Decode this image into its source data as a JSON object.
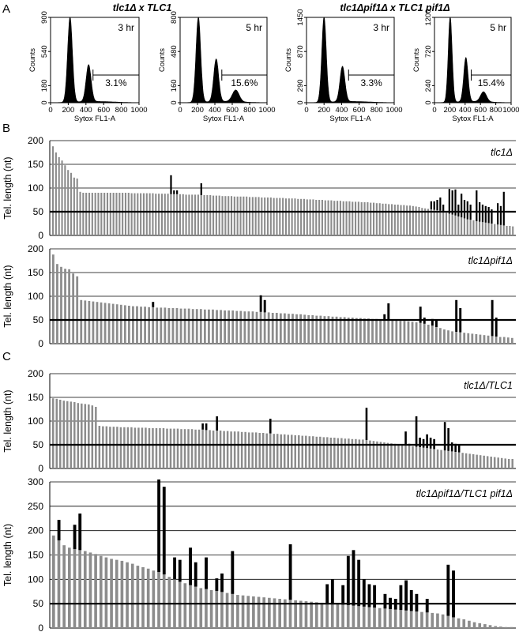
{
  "panel_labels": [
    "A",
    "B",
    "C"
  ],
  "histogram_groups": [
    {
      "title": "tlc1Δ x TLC1"
    },
    {
      "title": "tlc1Δpif1Δ x TLC1 pif1Δ"
    }
  ],
  "colors": {
    "bar_gray": "#8c8c8c",
    "bar_black": "#000000",
    "line": "#000000",
    "grid": "#000000"
  },
  "chart_data": [
    {
      "type": "area",
      "time": "3 hr",
      "percent": "3.1%",
      "ylabel": "Counts",
      "xlabel": "Sytox FL1-A",
      "yticks": [
        "0",
        "180",
        "540",
        "900"
      ],
      "ylim": [
        0,
        900
      ],
      "xticks": [
        "0",
        "200",
        "400",
        "600",
        "800",
        "1000"
      ],
      "xlim": [
        0,
        1000
      ],
      "peaks": [
        {
          "x": 220,
          "y": 900,
          "w": 38
        },
        {
          "x": 430,
          "y": 390,
          "w": 40
        }
      ],
      "gate": [
        480,
        1000
      ]
    },
    {
      "type": "area",
      "time": "5 hr",
      "percent": "15.6%",
      "ylabel": "Counts",
      "xlabel": "Sytox FL1-A",
      "yticks": [
        "0",
        "160",
        "480",
        "800"
      ],
      "ylim": [
        0,
        800
      ],
      "xticks": [
        "0",
        "200",
        "400",
        "600",
        "800",
        "1000"
      ],
      "xlim": [
        0,
        1000
      ],
      "peaks": [
        {
          "x": 210,
          "y": 800,
          "w": 38
        },
        {
          "x": 415,
          "y": 400,
          "w": 40
        },
        {
          "x": 640,
          "y": 110,
          "w": 55
        }
      ],
      "gate": [
        480,
        1000
      ]
    },
    {
      "type": "area",
      "time": "3 hr",
      "percent": "3.3%",
      "ylabel": "Counts",
      "xlabel": "Sytox FL1-A",
      "yticks": [
        "0",
        "290",
        "870",
        "1450"
      ],
      "ylim": [
        0,
        1450
      ],
      "xticks": [
        "0",
        "200",
        "400",
        "600",
        "800",
        "1000"
      ],
      "xlim": [
        0,
        1000
      ],
      "peaks": [
        {
          "x": 200,
          "y": 1450,
          "w": 36
        },
        {
          "x": 410,
          "y": 600,
          "w": 40
        }
      ],
      "gate": [
        480,
        1000
      ]
    },
    {
      "type": "area",
      "time": "5 hr",
      "percent": "15.4%",
      "ylabel": "Counts",
      "xlabel": "Sytox FL1-A",
      "yticks": [
        "0",
        "240",
        "720",
        "1200"
      ],
      "ylim": [
        0,
        1200
      ],
      "xticks": [
        "0",
        "200",
        "400",
        "600",
        "800",
        "1000"
      ],
      "xlim": [
        0,
        1000
      ],
      "peaks": [
        {
          "x": 205,
          "y": 1200,
          "w": 36
        },
        {
          "x": 410,
          "y": 620,
          "w": 40
        },
        {
          "x": 640,
          "y": 140,
          "w": 55
        }
      ],
      "gate": [
        480,
        1000
      ]
    },
    {
      "type": "bar",
      "label": "tlc1Δ",
      "ylabel": "Tel. length (nt)",
      "ylim": [
        0,
        200
      ],
      "yticks": [
        "0",
        "50",
        "100",
        "150",
        "200"
      ],
      "reference_line": 50,
      "values": [
        188,
        175,
        165,
        158,
        148,
        138,
        132,
        122,
        120,
        92,
        90,
        90,
        90,
        90,
        90,
        90,
        90,
        90,
        90,
        90,
        90,
        90,
        90,
        90,
        90,
        90,
        89,
        89,
        89,
        89,
        89,
        89,
        89,
        89,
        88,
        88,
        88,
        88,
        88,
        87,
        87,
        87,
        87,
        87,
        86,
        86,
        86,
        86,
        86,
        85,
        85,
        85,
        85,
        84,
        84,
        84,
        83,
        83,
        83,
        83,
        82,
        82,
        82,
        82,
        82,
        81,
        81,
        81,
        81,
        80,
        80,
        80,
        80,
        79,
        79,
        79,
        79,
        78,
        78,
        78,
        78,
        77,
        77,
        77,
        76,
        76,
        76,
        75,
        75,
        75,
        74,
        74,
        74,
        73,
        73,
        73,
        72,
        72,
        72,
        71,
        71,
        71,
        70,
        70,
        70,
        69,
        69,
        68,
        68,
        67,
        67,
        66,
        66,
        65,
        65,
        64,
        64,
        63,
        63,
        62,
        61,
        60,
        58,
        57,
        56,
        55,
        54,
        53,
        52,
        50,
        48,
        46,
        44,
        42,
        40,
        38,
        36,
        34,
        33,
        32,
        30,
        29,
        28,
        27,
        26,
        25,
        24,
        23,
        22,
        21,
        20,
        20,
        19
      ],
      "extensions": [
        {
          "i": 39,
          "v": 127
        },
        {
          "i": 40,
          "v": 95
        },
        {
          "i": 41,
          "v": 95
        },
        {
          "i": 49,
          "v": 110
        },
        {
          "i": 125,
          "v": 72
        },
        {
          "i": 126,
          "v": 72
        },
        {
          "i": 127,
          "v": 75
        },
        {
          "i": 128,
          "v": 80
        },
        {
          "i": 129,
          "v": 65
        },
        {
          "i": 131,
          "v": 98
        },
        {
          "i": 132,
          "v": 95
        },
        {
          "i": 133,
          "v": 97
        },
        {
          "i": 134,
          "v": 65
        },
        {
          "i": 135,
          "v": 88
        },
        {
          "i": 136,
          "v": 75
        },
        {
          "i": 137,
          "v": 72
        },
        {
          "i": 138,
          "v": 65
        },
        {
          "i": 140,
          "v": 95
        },
        {
          "i": 141,
          "v": 70
        },
        {
          "i": 142,
          "v": 65
        },
        {
          "i": 143,
          "v": 62
        },
        {
          "i": 144,
          "v": 60
        },
        {
          "i": 145,
          "v": 55
        },
        {
          "i": 147,
          "v": 68
        },
        {
          "i": 148,
          "v": 62
        },
        {
          "i": 149,
          "v": 92
        }
      ]
    },
    {
      "type": "bar",
      "label": "tlc1Δpif1Δ",
      "ylabel": "Tel. length (nt)",
      "ylim": [
        0,
        200
      ],
      "yticks": [
        "0",
        "50",
        "100",
        "150",
        "200"
      ],
      "reference_line": 50,
      "values": [
        188,
        168,
        162,
        158,
        157,
        148,
        142,
        92,
        91,
        90,
        89,
        88,
        87,
        86,
        85,
        84,
        83,
        82,
        81,
        80,
        79,
        79,
        78,
        78,
        77,
        77,
        76,
        76,
        76,
        75,
        75,
        75,
        74,
        74,
        74,
        73,
        73,
        73,
        72,
        72,
        72,
        71,
        71,
        70,
        70,
        70,
        69,
        69,
        68,
        68,
        68,
        67,
        67,
        66,
        66,
        65,
        65,
        64,
        64,
        63,
        63,
        62,
        62,
        61,
        60,
        60,
        59,
        59,
        58,
        58,
        57,
        57,
        56,
        56,
        55,
        55,
        54,
        54,
        53,
        53,
        52,
        52,
        51,
        51,
        50,
        50,
        49,
        48,
        48,
        47,
        46,
        45,
        44,
        42,
        40,
        38,
        35,
        33,
        30,
        28,
        26,
        25,
        24,
        23,
        22,
        21,
        20,
        19,
        18,
        17,
        16,
        15,
        14,
        14,
        13,
        12
      ],
      "extensions": [
        {
          "i": 25,
          "v": 88
        },
        {
          "i": 52,
          "v": 102
        },
        {
          "i": 53,
          "v": 92
        },
        {
          "i": 83,
          "v": 62
        },
        {
          "i": 84,
          "v": 85
        },
        {
          "i": 92,
          "v": 78
        },
        {
          "i": 93,
          "v": 55
        },
        {
          "i": 95,
          "v": 52
        },
        {
          "i": 96,
          "v": 50
        },
        {
          "i": 101,
          "v": 92
        },
        {
          "i": 102,
          "v": 75
        },
        {
          "i": 110,
          "v": 92
        },
        {
          "i": 111,
          "v": 55
        }
      ]
    },
    {
      "type": "bar",
      "label": "tlc1Δ/TLC1",
      "ylabel": "Tel. length (nt)",
      "ylim": [
        0,
        200
      ],
      "yticks": [
        "0",
        "50",
        "100",
        "150",
        "200"
      ],
      "reference_line": 50,
      "values": [
        148,
        147,
        145,
        143,
        142,
        141,
        140,
        138,
        137,
        136,
        135,
        133,
        130,
        90,
        89,
        89,
        88,
        88,
        88,
        87,
        87,
        87,
        87,
        86,
        86,
        86,
        86,
        85,
        85,
        85,
        85,
        85,
        84,
        84,
        84,
        84,
        83,
        83,
        83,
        83,
        82,
        82,
        82,
        81,
        81,
        80,
        80,
        80,
        79,
        79,
        78,
        78,
        78,
        77,
        77,
        76,
        76,
        76,
        75,
        75,
        74,
        74,
        73,
        73,
        72,
        72,
        71,
        71,
        70,
        70,
        69,
        69,
        68,
        68,
        67,
        67,
        66,
        66,
        65,
        65,
        64,
        64,
        63,
        63,
        62,
        62,
        61,
        61,
        60,
        59,
        58,
        57,
        56,
        55,
        54,
        53,
        52,
        51,
        50,
        49,
        48,
        47,
        46,
        45,
        44,
        43,
        42,
        41,
        40,
        39,
        38,
        37,
        36,
        35,
        34,
        33,
        32,
        31,
        30,
        29,
        28,
        27,
        26,
        25,
        24,
        23,
        22,
        21,
        20,
        20
      ],
      "extensions": [
        {
          "i": 42,
          "v": 95
        },
        {
          "i": 43,
          "v": 95
        },
        {
          "i": 46,
          "v": 110
        },
        {
          "i": 61,
          "v": 105
        },
        {
          "i": 77,
          "v": 65
        },
        {
          "i": 88,
          "v": 128
        },
        {
          "i": 99,
          "v": 78
        },
        {
          "i": 100,
          "v": 52
        },
        {
          "i": 102,
          "v": 110
        },
        {
          "i": 103,
          "v": 65
        },
        {
          "i": 104,
          "v": 62
        },
        {
          "i": 105,
          "v": 72
        },
        {
          "i": 106,
          "v": 65
        },
        {
          "i": 107,
          "v": 62
        },
        {
          "i": 110,
          "v": 98
        },
        {
          "i": 111,
          "v": 85
        },
        {
          "i": 112,
          "v": 55
        },
        {
          "i": 113,
          "v": 52
        },
        {
          "i": 114,
          "v": 50
        }
      ]
    },
    {
      "type": "bar",
      "label": "tlc1Δpif1Δ/TLC1 pif1Δ",
      "ylabel": "Tel. length (nt)",
      "ylim": [
        0,
        300
      ],
      "yticks": [
        "0",
        "50",
        "100",
        "150",
        "200",
        "250",
        "300"
      ],
      "reference_line": 50,
      "values": [
        190,
        180,
        170,
        165,
        162,
        160,
        158,
        155,
        152,
        148,
        145,
        142,
        140,
        138,
        135,
        132,
        128,
        125,
        122,
        118,
        115,
        110,
        105,
        100,
        95,
        92,
        88,
        85,
        82,
        80,
        78,
        76,
        74,
        72,
        70,
        68,
        67,
        66,
        65,
        64,
        63,
        62,
        61,
        60,
        59,
        58,
        57,
        56,
        55,
        54,
        53,
        52,
        51,
        50,
        49,
        48,
        47,
        46,
        45,
        44,
        43,
        42,
        41,
        40,
        39,
        38,
        37,
        36,
        35,
        34,
        33,
        32,
        31,
        30,
        28,
        25,
        22,
        20,
        18,
        15,
        12,
        10,
        8,
        6,
        4,
        3,
        2,
        2
      ],
      "extensions": [
        {
          "i": 1,
          "v": 222
        },
        {
          "i": 4,
          "v": 212
        },
        {
          "i": 5,
          "v": 235
        },
        {
          "i": 20,
          "v": 305
        },
        {
          "i": 21,
          "v": 290
        },
        {
          "i": 23,
          "v": 145
        },
        {
          "i": 24,
          "v": 140
        },
        {
          "i": 26,
          "v": 165
        },
        {
          "i": 27,
          "v": 135
        },
        {
          "i": 29,
          "v": 145
        },
        {
          "i": 31,
          "v": 102
        },
        {
          "i": 32,
          "v": 112
        },
        {
          "i": 34,
          "v": 158
        },
        {
          "i": 45,
          "v": 172
        },
        {
          "i": 52,
          "v": 90
        },
        {
          "i": 53,
          "v": 100
        },
        {
          "i": 55,
          "v": 88
        },
        {
          "i": 56,
          "v": 148
        },
        {
          "i": 57,
          "v": 160
        },
        {
          "i": 58,
          "v": 140
        },
        {
          "i": 59,
          "v": 100
        },
        {
          "i": 60,
          "v": 90
        },
        {
          "i": 61,
          "v": 88
        },
        {
          "i": 63,
          "v": 70
        },
        {
          "i": 64,
          "v": 62
        },
        {
          "i": 65,
          "v": 60
        },
        {
          "i": 66,
          "v": 88
        },
        {
          "i": 67,
          "v": 98
        },
        {
          "i": 68,
          "v": 78
        },
        {
          "i": 69,
          "v": 70
        },
        {
          "i": 71,
          "v": 60
        },
        {
          "i": 75,
          "v": 130
        },
        {
          "i": 76,
          "v": 118
        }
      ]
    }
  ]
}
